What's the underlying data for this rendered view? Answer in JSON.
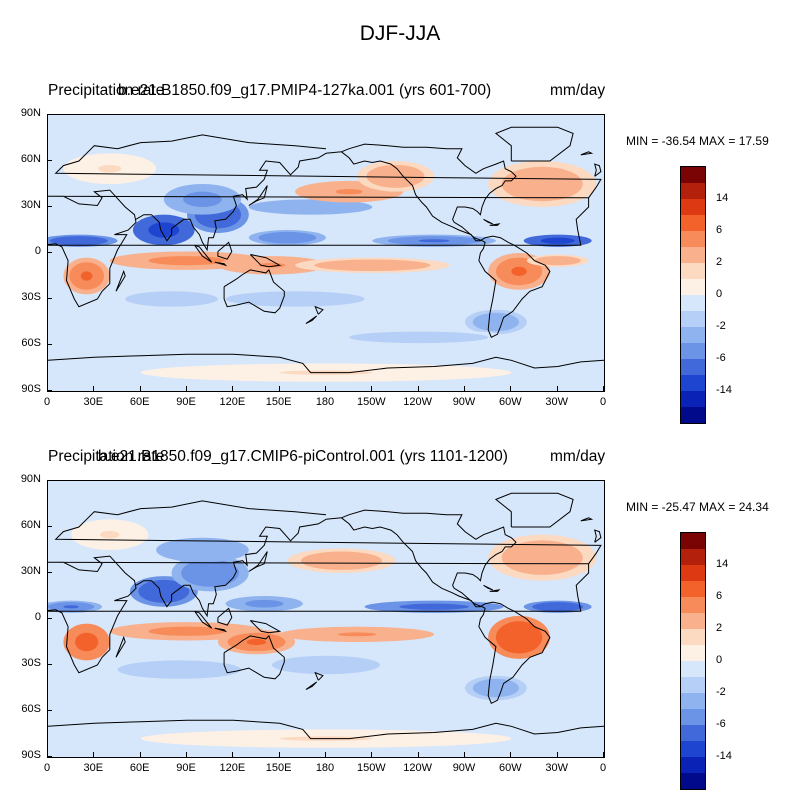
{
  "figure": {
    "title": "DJF-JJA"
  },
  "panels": [
    {
      "case_title": "b.e21.B1850.f09_g17.PMIP4-127ka.001 (yrs 601-700)",
      "var_title": "Precipitation rate",
      "units": "mm/day",
      "stats": "MIN = -36.54 MAX =  17.59",
      "min": -36.54,
      "max": 17.59
    },
    {
      "case_title": "b.e21.B1850.f09_g17.CMIP6-piControl.001 (yrs 1101-1200)",
      "var_title": "Precipitation rate",
      "units": "mm/day",
      "stats": "MIN = -25.47 MAX =  24.34",
      "min": -25.47,
      "max": 24.34
    }
  ],
  "axes": {
    "y_ticks": [
      "90N",
      "60N",
      "30N",
      "0",
      "30S",
      "60S",
      "90S"
    ],
    "x_ticks": [
      "0",
      "30E",
      "60E",
      "90E",
      "120E",
      "150E",
      "180",
      "150W",
      "120W",
      "90W",
      "60W",
      "30W",
      "0"
    ]
  },
  "colorbar": {
    "colors": [
      "#7a0403",
      "#b3200b",
      "#dd3a13",
      "#f2622a",
      "#f78b5a",
      "#f9b18d",
      "#fcd9c1",
      "#fdf1e6",
      "#d6e6fb",
      "#b5cff6",
      "#8fb3ee",
      "#6b93e6",
      "#4169d9",
      "#1e45d0",
      "#0a22b5",
      "#000a8a"
    ],
    "labels": [
      "14",
      "6",
      "2",
      "0",
      "-2",
      "-6",
      "-14"
    ]
  },
  "chart_data": [
    {
      "type": "heatmap",
      "title": "Precipitation rate",
      "subtitle": "b.e21.B1850.f09_g17.PMIP4-127ka.001 (yrs 601-700)",
      "units": "mm/day",
      "xlim": [
        0,
        360
      ],
      "ylim": [
        -90,
        90
      ],
      "levels": [
        -14,
        -6,
        -2,
        0,
        2,
        6,
        14
      ],
      "stats": {
        "min": -36.54,
        "max": 17.59
      },
      "features": [
        {
          "lon": 75,
          "lat": 15,
          "lonr": 20,
          "latr": 10,
          "v": -12
        },
        {
          "lon": 110,
          "lat": 25,
          "lonr": 20,
          "latr": 12,
          "v": -10
        },
        {
          "lon": 100,
          "lat": 35,
          "lonr": 25,
          "latr": 10,
          "v": -5
        },
        {
          "lon": 20,
          "lat": 8,
          "lonr": 25,
          "latr": 4,
          "v": -10
        },
        {
          "lon": 330,
          "lat": 8,
          "lonr": 22,
          "latr": 4,
          "v": -12
        },
        {
          "lon": 250,
          "lat": 8,
          "lonr": 40,
          "latr": 4,
          "v": -7
        },
        {
          "lon": 155,
          "lat": 10,
          "lonr": 25,
          "latr": 5,
          "v": -6
        },
        {
          "lon": 170,
          "lat": 30,
          "lonr": 40,
          "latr": 5,
          "v": -4
        },
        {
          "lon": 195,
          "lat": 40,
          "lonr": 35,
          "latr": 7,
          "v": 4
        },
        {
          "lon": 225,
          "lat": 50,
          "lonr": 25,
          "latr": 10,
          "v": 3
        },
        {
          "lon": 320,
          "lat": 45,
          "lonr": 35,
          "latr": 15,
          "v": 3
        },
        {
          "lon": 40,
          "lat": 55,
          "lonr": 30,
          "latr": 10,
          "v": 1
        },
        {
          "lon": 90,
          "lat": -5,
          "lonr": 50,
          "latr": 6,
          "v": 5
        },
        {
          "lon": 145,
          "lat": -8,
          "lonr": 35,
          "latr": 6,
          "v": 4
        },
        {
          "lon": 25,
          "lat": -15,
          "lonr": 15,
          "latr": 12,
          "v": 6
        },
        {
          "lon": 305,
          "lat": -12,
          "lonr": 20,
          "latr": 12,
          "v": 7
        },
        {
          "lon": 210,
          "lat": -8,
          "lonr": 50,
          "latr": 5,
          "v": 3
        },
        {
          "lon": 330,
          "lat": -5,
          "lonr": 20,
          "latr": 4,
          "v": 3
        },
        {
          "lon": 160,
          "lat": -30,
          "lonr": 45,
          "latr": 5,
          "v": -2
        },
        {
          "lon": 80,
          "lat": -30,
          "lonr": 30,
          "latr": 5,
          "v": -2
        },
        {
          "lon": 290,
          "lat": -45,
          "lonr": 20,
          "latr": 8,
          "v": -3
        },
        {
          "lon": 240,
          "lat": -55,
          "lonr": 60,
          "latr": 5,
          "v": -1.5
        },
        {
          "lon": 180,
          "lat": -78,
          "lonr": 120,
          "latr": 6,
          "v": 1
        }
      ]
    },
    {
      "type": "heatmap",
      "title": "Precipitation rate",
      "subtitle": "b.e21.B1850.f09_g17.CMIP6-piControl.001 (yrs 1101-1200)",
      "units": "mm/day",
      "xlim": [
        0,
        360
      ],
      "ylim": [
        -90,
        90
      ],
      "levels": [
        -14,
        -6,
        -2,
        0,
        2,
        6,
        14
      ],
      "stats": {
        "min": -25.47,
        "max": 24.34
      },
      "features": [
        {
          "lon": 75,
          "lat": 18,
          "lonr": 22,
          "latr": 10,
          "v": -9
        },
        {
          "lon": 105,
          "lat": 30,
          "lonr": 25,
          "latr": 12,
          "v": -6
        },
        {
          "lon": 100,
          "lat": 45,
          "lonr": 30,
          "latr": 8,
          "v": -4
        },
        {
          "lon": 15,
          "lat": 8,
          "lonr": 20,
          "latr": 4,
          "v": -7
        },
        {
          "lon": 330,
          "lat": 8,
          "lonr": 22,
          "latr": 4,
          "v": -10
        },
        {
          "lon": 250,
          "lat": 8,
          "lonr": 45,
          "latr": 4,
          "v": -8
        },
        {
          "lon": 140,
          "lat": 10,
          "lonr": 25,
          "latr": 5,
          "v": -5
        },
        {
          "lon": 190,
          "lat": 38,
          "lonr": 35,
          "latr": 8,
          "v": 3
        },
        {
          "lon": 320,
          "lat": 40,
          "lonr": 35,
          "latr": 15,
          "v": 3
        },
        {
          "lon": 40,
          "lat": 55,
          "lonr": 25,
          "latr": 10,
          "v": 1
        },
        {
          "lon": 25,
          "lat": -15,
          "lonr": 15,
          "latr": 12,
          "v": 8
        },
        {
          "lon": 305,
          "lat": -12,
          "lonr": 20,
          "latr": 14,
          "v": 9
        },
        {
          "lon": 90,
          "lat": -8,
          "lonr": 50,
          "latr": 6,
          "v": 5
        },
        {
          "lon": 135,
          "lat": -15,
          "lonr": 25,
          "latr": 8,
          "v": 6
        },
        {
          "lon": 200,
          "lat": -10,
          "lonr": 50,
          "latr": 5,
          "v": 4
        },
        {
          "lon": 85,
          "lat": -33,
          "lonr": 40,
          "latr": 6,
          "v": -2
        },
        {
          "lon": 180,
          "lat": -30,
          "lonr": 35,
          "latr": 6,
          "v": -2
        },
        {
          "lon": 290,
          "lat": -45,
          "lonr": 20,
          "latr": 8,
          "v": -3
        },
        {
          "lon": 180,
          "lat": -78,
          "lonr": 120,
          "latr": 6,
          "v": 1
        }
      ]
    }
  ]
}
